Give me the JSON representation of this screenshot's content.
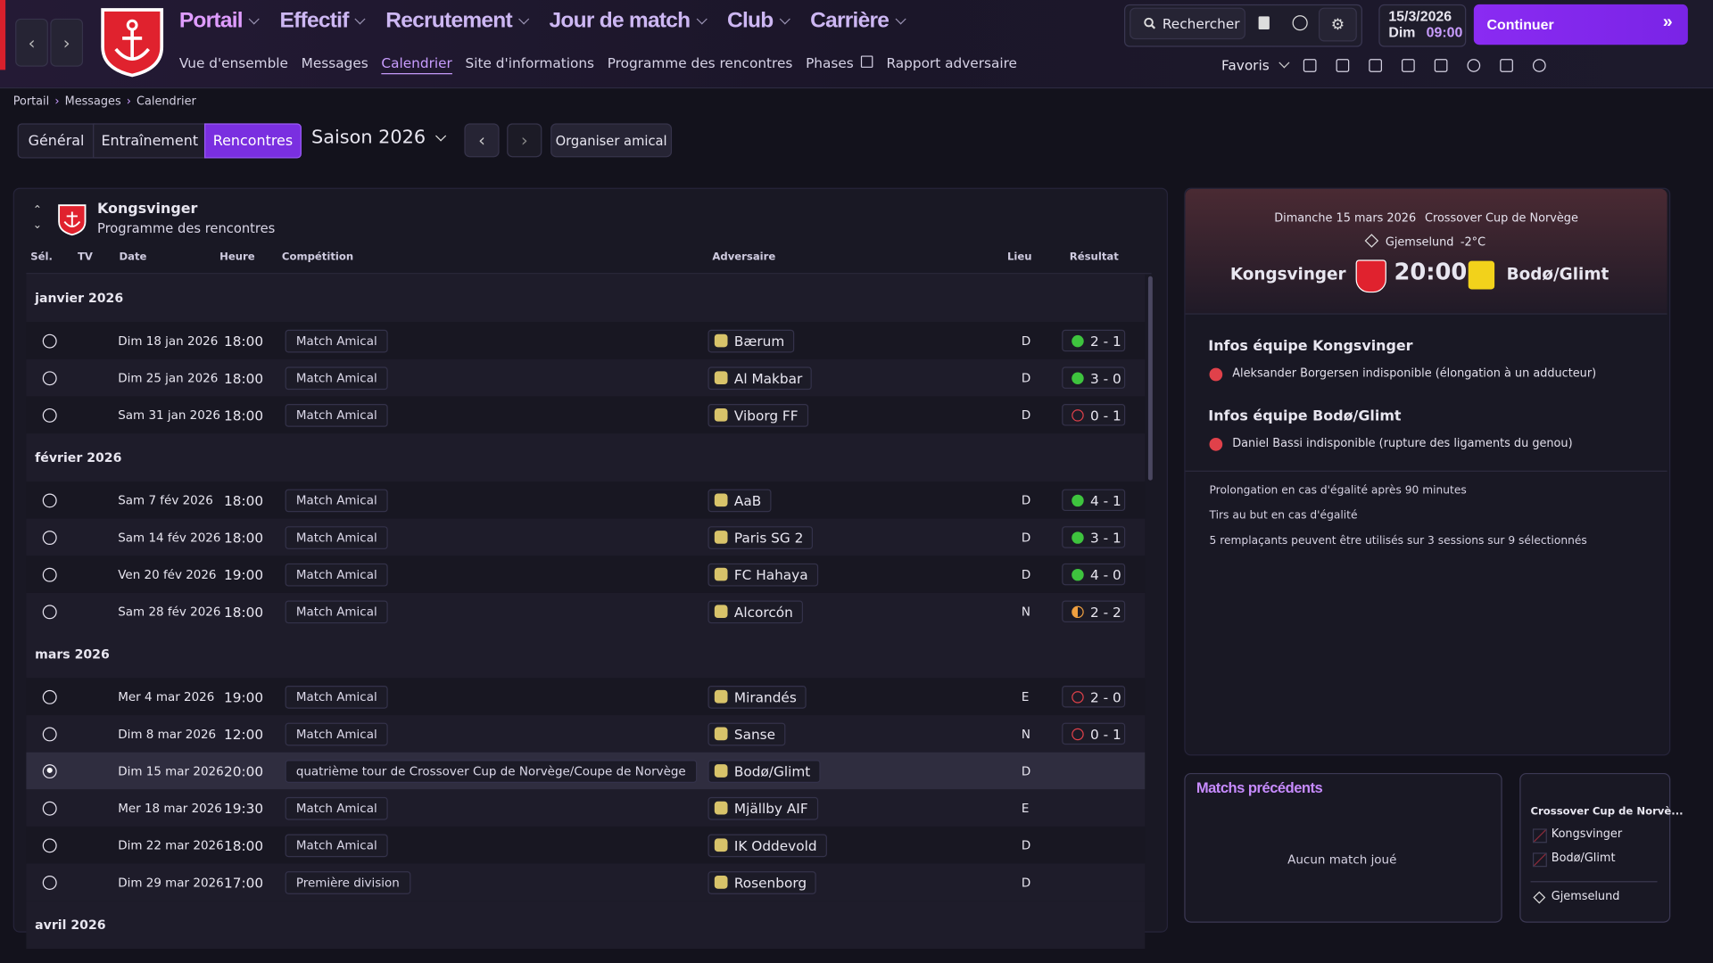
{
  "nav": {
    "menus": [
      "Portail",
      "Effectif",
      "Recrutement",
      "Jour de match",
      "Club",
      "Carrière"
    ],
    "submenu": [
      "Vue d'ensemble",
      "Messages",
      "Calendrier",
      "Site d'informations",
      "Programme des rencontres",
      "Phases",
      "Rapport adversaire"
    ],
    "search": "Rechercher",
    "date": "15/3/2026",
    "day": "Dim",
    "time": "09:00",
    "continue": "Continuer",
    "favorites": "Favoris"
  },
  "breadcrumb": [
    "Portail",
    "Messages",
    "Calendrier"
  ],
  "tabs": [
    "Général",
    "Entraînement",
    "Rencontres"
  ],
  "season": "Saison 2026",
  "friendly": "Organiser amical",
  "schedule": {
    "team": "Kongsvinger",
    "subtitle": "Programme des rencontres",
    "columns": [
      "Sél.",
      "TV",
      "Date",
      "Heure",
      "Compétition",
      "Adversaire",
      "Lieu",
      "Résultat"
    ],
    "months": [
      {
        "name": "janvier 2026",
        "matches": [
          {
            "date": "Dim 18 jan 2026",
            "time": "18:00",
            "competition": "Match Amical",
            "opponent": "Bærum",
            "venue": "D",
            "result": "2 - 1",
            "outcome": "win"
          },
          {
            "date": "Dim 25 jan 2026",
            "time": "18:00",
            "competition": "Match Amical",
            "opponent": "Al Makbar",
            "venue": "D",
            "result": "3 - 0",
            "outcome": "win"
          },
          {
            "date": "Sam 31 jan 2026",
            "time": "18:00",
            "competition": "Match Amical",
            "opponent": "Viborg FF",
            "venue": "D",
            "result": "0 - 1",
            "outcome": "loss"
          }
        ]
      },
      {
        "name": "février 2026",
        "matches": [
          {
            "date": "Sam 7 fév 2026",
            "time": "18:00",
            "competition": "Match Amical",
            "opponent": "AaB",
            "venue": "D",
            "result": "4 - 1",
            "outcome": "win"
          },
          {
            "date": "Sam 14 fév 2026",
            "time": "18:00",
            "competition": "Match Amical",
            "opponent": "Paris SG 2",
            "venue": "D",
            "result": "3 - 1",
            "outcome": "win"
          },
          {
            "date": "Ven 20 fév 2026",
            "time": "19:00",
            "competition": "Match Amical",
            "opponent": "FC Hahaya",
            "venue": "D",
            "result": "4 - 0",
            "outcome": "win"
          },
          {
            "date": "Sam 28 fév 2026",
            "time": "18:00",
            "competition": "Match Amical",
            "opponent": "Alcorcón",
            "venue": "N",
            "result": "2 - 2",
            "outcome": "draw"
          }
        ]
      },
      {
        "name": "mars 2026",
        "matches": [
          {
            "date": "Mer 4 mar 2026",
            "time": "19:00",
            "competition": "Match Amical",
            "opponent": "Mirandés",
            "venue": "E",
            "result": "2 - 0",
            "outcome": "loss"
          },
          {
            "date": "Dim 8 mar 2026",
            "time": "12:00",
            "competition": "Match Amical",
            "opponent": "Sanse",
            "venue": "N",
            "result": "0 - 1",
            "outcome": "loss"
          },
          {
            "date": "Dim 15 mar 2026",
            "time": "20:00",
            "competition": "quatrième tour de Crossover Cup de Norvège/Coupe de Norvège",
            "opponent": "Bodø/Glimt",
            "venue": "D",
            "selected": true
          },
          {
            "date": "Mer 18 mar 2026",
            "time": "19:30",
            "competition": "Match Amical",
            "opponent": "Mjällby AIF",
            "venue": "E"
          },
          {
            "date": "Dim 22 mar 2026",
            "time": "18:00",
            "competition": "Match Amical",
            "opponent": "IK Oddevold",
            "venue": "D"
          },
          {
            "date": "Dim 29 mar 2026",
            "time": "17:00",
            "competition": "Première division",
            "opponent": "Rosenborg",
            "venue": "D"
          }
        ]
      },
      {
        "name": "avril 2026",
        "matches": []
      }
    ]
  },
  "preview": {
    "date": "Dimanche 15 mars 2026",
    "competition": "Crossover Cup de Norvège",
    "stadium": "Gjemselund",
    "temperature": "-2°C",
    "home": "Kongsvinger",
    "time": "20:00",
    "away": "Bodø/Glimt",
    "info": [
      {
        "title": "Infos équipe Kongsvinger",
        "items": [
          "Aleksander Borgersen indisponible (élongation à un adducteur)"
        ]
      },
      {
        "title": "Infos équipe Bodø/Glimt",
        "items": [
          "Daniel Bassi indisponible (rupture des ligaments du genou)"
        ]
      }
    ],
    "rules": [
      "Prolongation en cas d'égalité après 90 minutes",
      "Tirs au but en cas d'égalité",
      "5 remplaçants peuvent être utilisés sur 3 sessions sur 9 sélectionnés"
    ]
  },
  "previous": {
    "title": "Matchs précédents",
    "empty": "Aucun match joué"
  },
  "mini": {
    "title": "Crossover Cup de Norvè...",
    "teams": [
      "Kongsvinger",
      "Bodø/Glimt"
    ],
    "stadium": "Gjemselund"
  }
}
